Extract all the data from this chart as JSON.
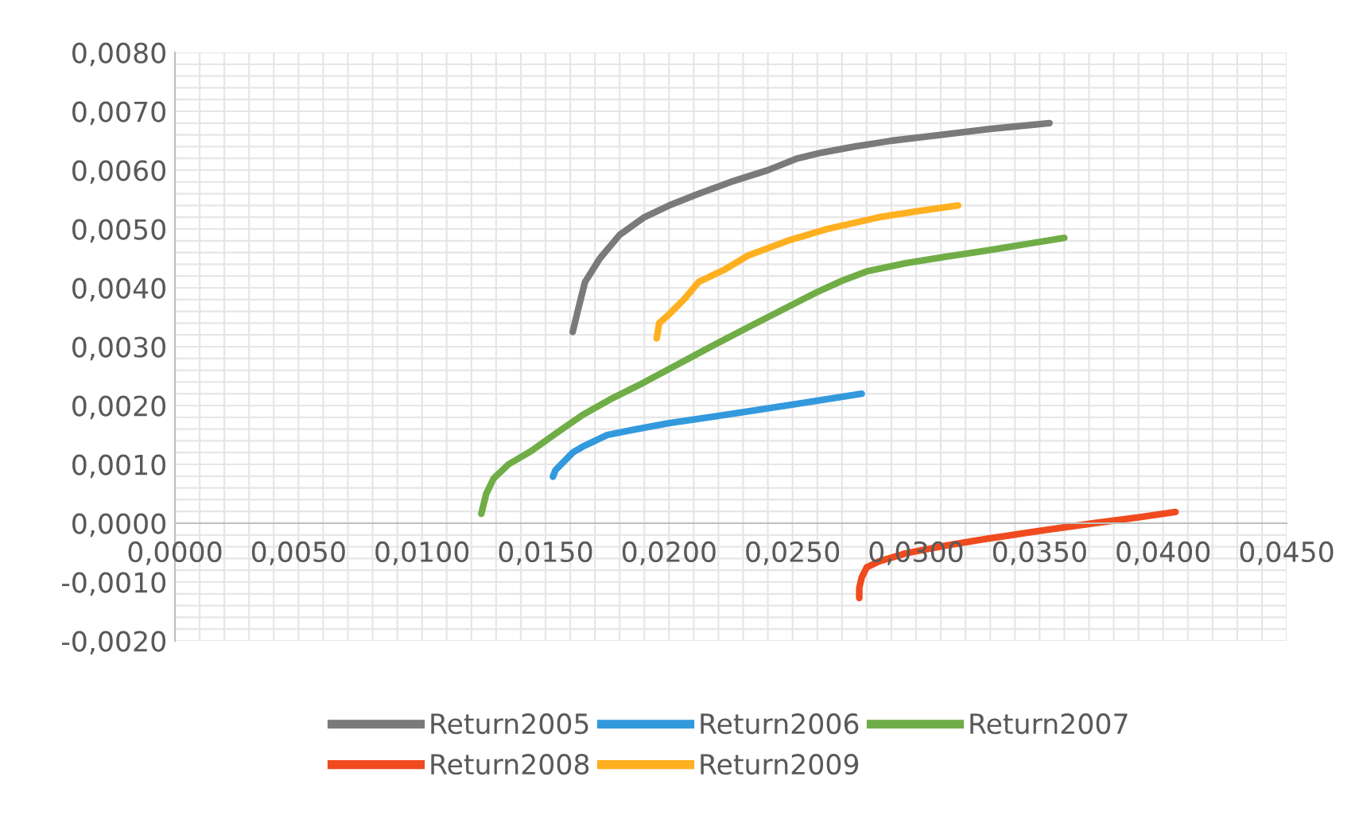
{
  "chart_data": {
    "type": "line",
    "series": [
      {
        "name": "Return2005",
        "color": "#7a7a7a",
        "x": [
          0.0161,
          0.0163,
          0.0166,
          0.0172,
          0.018,
          0.019,
          0.02,
          0.0212,
          0.0225,
          0.024,
          0.0252,
          0.0262,
          0.0275,
          0.029,
          0.031,
          0.033,
          0.0354
        ],
        "values": [
          0.00325,
          0.0036,
          0.0041,
          0.0045,
          0.0049,
          0.0052,
          0.0054,
          0.0056,
          0.0058,
          0.006,
          0.0062,
          0.0063,
          0.0064,
          0.0065,
          0.0066,
          0.0067,
          0.0068
        ]
      },
      {
        "name": "Return2006",
        "color": "#3399dd",
        "x": [
          0.0153,
          0.0154,
          0.0157,
          0.0161,
          0.0165,
          0.0175,
          0.0187,
          0.02,
          0.0216,
          0.0232,
          0.0255,
          0.0278
        ],
        "values": [
          0.00079,
          0.0009,
          0.00103,
          0.0012,
          0.0013,
          0.0015,
          0.0016,
          0.0017,
          0.0018,
          0.0019,
          0.00205,
          0.0022
        ]
      },
      {
        "name": "Return2007",
        "color": "#70ad47",
        "x": [
          0.0124,
          0.0126,
          0.0129,
          0.0135,
          0.0144,
          0.0155,
          0.0165,
          0.0176,
          0.0187,
          0.02,
          0.0216,
          0.0232,
          0.0246,
          0.026,
          0.027,
          0.028,
          0.0296,
          0.0312,
          0.0328,
          0.0344,
          0.036
        ],
        "values": [
          0.00016,
          0.0005,
          0.00076,
          0.001,
          0.00122,
          0.00155,
          0.00184,
          0.0021,
          0.00233,
          0.00262,
          0.00298,
          0.00333,
          0.00363,
          0.00393,
          0.00412,
          0.00428,
          0.00442,
          0.00453,
          0.00463,
          0.00474,
          0.00485
        ]
      },
      {
        "name": "Return2008",
        "color": "#f04a1f",
        "x": [
          0.0277,
          0.0277,
          0.0278,
          0.028,
          0.0285,
          0.0296,
          0.0312,
          0.0328,
          0.035,
          0.0372,
          0.039,
          0.0405
        ],
        "values": [
          -0.00127,
          -0.0011,
          -0.00092,
          -0.00075,
          -0.00065,
          -0.00051,
          -0.00038,
          -0.00027,
          -0.00013,
          0.0,
          0.0001,
          0.00019
        ]
      },
      {
        "name": "Return2009",
        "color": "#ffb020",
        "x": [
          0.0195,
          0.0196,
          0.02,
          0.0206,
          0.0212,
          0.0222,
          0.0232,
          0.0248,
          0.0264,
          0.0285,
          0.03,
          0.0317
        ],
        "values": [
          0.00314,
          0.0034,
          0.00355,
          0.0038,
          0.0041,
          0.0043,
          0.00455,
          0.0048,
          0.005,
          0.0052,
          0.0053,
          0.0054
        ]
      }
    ],
    "xlim": [
      0,
      0.045
    ],
    "ylim": [
      -0.002,
      0.008
    ],
    "xticks": [
      {
        "value": 0,
        "label": "0,0000"
      },
      {
        "value": 0.005,
        "label": "0,0050"
      },
      {
        "value": 0.01,
        "label": "0,0100"
      },
      {
        "value": 0.015,
        "label": "0,0150"
      },
      {
        "value": 0.02,
        "label": "0,0200"
      },
      {
        "value": 0.025,
        "label": "0,0250"
      },
      {
        "value": 0.03,
        "label": "0,0300"
      },
      {
        "value": 0.035,
        "label": "0,0350"
      },
      {
        "value": 0.04,
        "label": "0,0400"
      },
      {
        "value": 0.045,
        "label": "0,0450"
      }
    ],
    "yticks": [
      {
        "value": -0.002,
        "label": "-0,0020"
      },
      {
        "value": -0.001,
        "label": "-0,0010"
      },
      {
        "value": 0,
        "label": "0,0000"
      },
      {
        "value": 0.001,
        "label": "0,0010"
      },
      {
        "value": 0.002,
        "label": "0,0020"
      },
      {
        "value": 0.003,
        "label": "0,0030"
      },
      {
        "value": 0.004,
        "label": "0,0040"
      },
      {
        "value": 0.005,
        "label": "0,0050"
      },
      {
        "value": 0.006,
        "label": "0,0060"
      },
      {
        "value": 0.007,
        "label": "0,0070"
      },
      {
        "value": 0.008,
        "label": "0,0080"
      }
    ],
    "grid": true,
    "legend": "bottom",
    "marker": "none",
    "line_style": "solid"
  }
}
